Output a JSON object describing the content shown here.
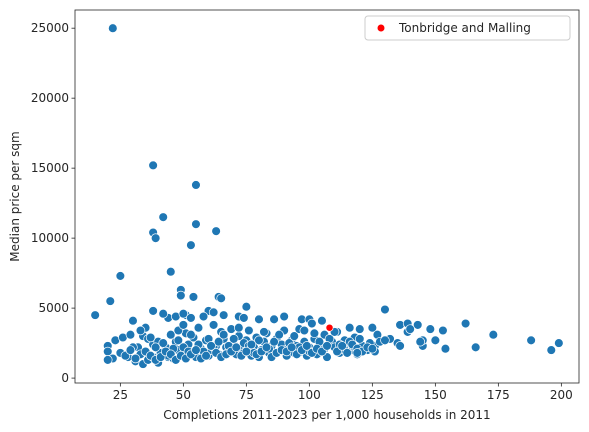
{
  "chart_data": {
    "type": "scatter",
    "title": "",
    "xlabel": "Completions 2011-2023 per 1,000 households in 2011",
    "ylabel": "Median price per sqm",
    "xlim": [
      7,
      207
    ],
    "ylim": [
      -350,
      26300
    ],
    "xticks": [
      25,
      50,
      75,
      100,
      125,
      150,
      175,
      200
    ],
    "yticks": [
      0,
      5000,
      10000,
      15000,
      20000,
      25000
    ],
    "grid": false,
    "legend_position": "top-right",
    "colors": {
      "points": "#1f77b4",
      "highlight": "#ff0000",
      "edge": "#ffffff",
      "axes": "#262626"
    },
    "series": [
      {
        "name": "",
        "points": [
          [
            22,
            25000
          ],
          [
            38,
            15200
          ],
          [
            55,
            13800
          ],
          [
            42,
            11500
          ],
          [
            55,
            11000
          ],
          [
            38,
            10400
          ],
          [
            63,
            10500
          ],
          [
            39,
            10000
          ],
          [
            53,
            9500
          ],
          [
            25,
            7300
          ],
          [
            45,
            7600
          ],
          [
            49,
            6300
          ],
          [
            54,
            5800
          ],
          [
            49,
            5900
          ],
          [
            64,
            5800
          ],
          [
            65,
            5700
          ],
          [
            21,
            5500
          ],
          [
            75,
            5100
          ],
          [
            60,
            4800
          ],
          [
            38,
            4800
          ],
          [
            15,
            4500
          ],
          [
            51,
            4500
          ],
          [
            58,
            4400
          ],
          [
            44,
            4300
          ],
          [
            47,
            4400
          ],
          [
            50,
            4600
          ],
          [
            53,
            4300
          ],
          [
            42,
            4600
          ],
          [
            62,
            4700
          ],
          [
            66,
            4500
          ],
          [
            72,
            4400
          ],
          [
            74,
            4300
          ],
          [
            80,
            4200
          ],
          [
            86,
            4200
          ],
          [
            90,
            4400
          ],
          [
            97,
            4200
          ],
          [
            100,
            4200
          ],
          [
            105,
            4100
          ],
          [
            130,
            4900
          ],
          [
            136,
            3800
          ],
          [
            139,
            3900
          ],
          [
            143,
            3800
          ],
          [
            148,
            3500
          ],
          [
            153,
            3400
          ],
          [
            162,
            3900
          ],
          [
            173,
            3100
          ],
          [
            188,
            2700
          ],
          [
            196,
            2000
          ],
          [
            199,
            2500
          ],
          [
            20,
            2300
          ],
          [
            20,
            1900
          ],
          [
            23,
            2700
          ],
          [
            26,
            2900
          ],
          [
            29,
            3100
          ],
          [
            32,
            2200
          ],
          [
            34,
            3000
          ],
          [
            35,
            3600
          ],
          [
            36,
            2800
          ],
          [
            38,
            2400
          ],
          [
            40,
            2600
          ],
          [
            30,
            2200
          ],
          [
            33,
            1700
          ],
          [
            28,
            1500
          ],
          [
            25,
            1800
          ],
          [
            22,
            1400
          ],
          [
            20,
            1300
          ],
          [
            31,
            1200
          ],
          [
            34,
            1000
          ],
          [
            36,
            1300
          ],
          [
            38,
            1500
          ],
          [
            40,
            1100
          ],
          [
            41,
            1800
          ],
          [
            43,
            2200
          ],
          [
            44,
            1500
          ],
          [
            46,
            1400
          ],
          [
            47,
            2600
          ],
          [
            48,
            2000
          ],
          [
            50,
            1700
          ],
          [
            51,
            3200
          ],
          [
            52,
            2400
          ],
          [
            53,
            1800
          ],
          [
            54,
            2900
          ],
          [
            55,
            1500
          ],
          [
            56,
            3600
          ],
          [
            57,
            2100
          ],
          [
            58,
            1800
          ],
          [
            59,
            2700
          ],
          [
            60,
            1600
          ],
          [
            61,
            2000
          ],
          [
            62,
            3800
          ],
          [
            63,
            2300
          ],
          [
            64,
            1700
          ],
          [
            65,
            3300
          ],
          [
            66,
            2800
          ],
          [
            67,
            2200
          ],
          [
            68,
            1900
          ],
          [
            69,
            3500
          ],
          [
            70,
            2400
          ],
          [
            71,
            1700
          ],
          [
            72,
            3000
          ],
          [
            73,
            2100
          ],
          [
            74,
            1800
          ],
          [
            75,
            2700
          ],
          [
            76,
            3400
          ],
          [
            77,
            1600
          ],
          [
            78,
            2200
          ],
          [
            79,
            2900
          ],
          [
            80,
            1500
          ],
          [
            81,
            2000
          ],
          [
            82,
            2600
          ],
          [
            83,
            3200
          ],
          [
            84,
            1800
          ],
          [
            85,
            2300
          ],
          [
            86,
            1700
          ],
          [
            87,
            2800
          ],
          [
            88,
            1900
          ],
          [
            89,
            2400
          ],
          [
            90,
            3400
          ],
          [
            91,
            1600
          ],
          [
            92,
            2100
          ],
          [
            93,
            2700
          ],
          [
            94,
            1800
          ],
          [
            95,
            2300
          ],
          [
            96,
            3500
          ],
          [
            97,
            1900
          ],
          [
            98,
            2600
          ],
          [
            99,
            1600
          ],
          [
            100,
            2200
          ],
          [
            101,
            3900
          ],
          [
            102,
            2800
          ],
          [
            103,
            1700
          ],
          [
            104,
            2400
          ],
          [
            105,
            2000
          ],
          [
            106,
            3100
          ],
          [
            107,
            1500
          ],
          [
            109,
            2600
          ],
          [
            110,
            2200
          ],
          [
            111,
            3300
          ],
          [
            112,
            1800
          ],
          [
            114,
            2700
          ],
          [
            115,
            2200
          ],
          [
            116,
            3600
          ],
          [
            117,
            2000
          ],
          [
            118,
            2900
          ],
          [
            119,
            1700
          ],
          [
            120,
            3500
          ],
          [
            121,
            2300
          ],
          [
            123,
            2000
          ],
          [
            125,
            3600
          ],
          [
            126,
            2300
          ],
          [
            127,
            3100
          ],
          [
            128,
            2600
          ],
          [
            132,
            2800
          ],
          [
            135,
            2500
          ],
          [
            139,
            3300
          ],
          [
            145,
            2300
          ],
          [
            145,
            2700
          ],
          [
            154,
            2100
          ],
          [
            166,
            2200
          ],
          [
            30,
            4100
          ],
          [
            33,
            3400
          ],
          [
            37,
            2900
          ],
          [
            39,
            2200
          ],
          [
            42,
            2500
          ],
          [
            45,
            3100
          ],
          [
            48,
            2700
          ],
          [
            50,
            2200
          ],
          [
            52,
            1900
          ],
          [
            44,
            1600
          ],
          [
            46,
            2100
          ],
          [
            48,
            3400
          ],
          [
            50,
            3800
          ],
          [
            53,
            3100
          ],
          [
            56,
            2400
          ],
          [
            58,
            1900
          ],
          [
            60,
            2800
          ],
          [
            62,
            2200
          ],
          [
            64,
            2600
          ],
          [
            66,
            3100
          ],
          [
            68,
            2300
          ],
          [
            70,
            2800
          ],
          [
            72,
            3600
          ],
          [
            74,
            2500
          ],
          [
            76,
            2300
          ],
          [
            78,
            1800
          ],
          [
            80,
            2700
          ],
          [
            82,
            3300
          ],
          [
            84,
            2100
          ],
          [
            86,
            2600
          ],
          [
            88,
            3100
          ],
          [
            90,
            2000
          ],
          [
            92,
            2500
          ],
          [
            94,
            3000
          ],
          [
            96,
            2200
          ],
          [
            98,
            3400
          ],
          [
            100,
            1900
          ],
          [
            102,
            3200
          ],
          [
            104,
            2600
          ],
          [
            106,
            2100
          ],
          [
            108,
            2800
          ],
          [
            110,
            3300
          ],
          [
            112,
            2400
          ],
          [
            114,
            2000
          ],
          [
            116,
            2600
          ],
          [
            118,
            2200
          ],
          [
            120,
            2800
          ],
          [
            124,
            2500
          ],
          [
            126,
            1900
          ],
          [
            130,
            2700
          ],
          [
            136,
            2300
          ],
          [
            140,
            3500
          ],
          [
            144,
            2600
          ],
          [
            150,
            2700
          ],
          [
            27,
            1600
          ],
          [
            29,
            2000
          ],
          [
            31,
            1400
          ],
          [
            35,
            1900
          ],
          [
            37,
            1600
          ],
          [
            39,
            1300
          ],
          [
            41,
            1500
          ],
          [
            43,
            1900
          ],
          [
            45,
            1700
          ],
          [
            47,
            1300
          ],
          [
            49,
            1600
          ],
          [
            51,
            1400
          ],
          [
            53,
            1700
          ],
          [
            55,
            2000
          ],
          [
            57,
            1400
          ],
          [
            59,
            1600
          ],
          [
            61,
            2300
          ],
          [
            63,
            1800
          ],
          [
            65,
            1500
          ],
          [
            67,
            1700
          ],
          [
            69,
            1900
          ],
          [
            71,
            2200
          ],
          [
            73,
            1600
          ],
          [
            75,
            1900
          ],
          [
            77,
            2400
          ],
          [
            79,
            1700
          ],
          [
            81,
            1900
          ],
          [
            83,
            2200
          ],
          [
            85,
            1500
          ],
          [
            87,
            1800
          ],
          [
            89,
            2000
          ],
          [
            91,
            1900
          ],
          [
            93,
            2200
          ],
          [
            95,
            1700
          ],
          [
            97,
            2000
          ],
          [
            99,
            2300
          ],
          [
            101,
            1800
          ],
          [
            103,
            2100
          ],
          [
            105,
            1900
          ],
          [
            107,
            2300
          ],
          [
            111,
            1900
          ],
          [
            113,
            2300
          ],
          [
            115,
            1800
          ],
          [
            117,
            2400
          ],
          [
            119,
            2100
          ],
          [
            121,
            1900
          ],
          [
            123,
            2200
          ],
          [
            125,
            2100
          ],
          [
            119,
            1800
          ]
        ]
      },
      {
        "name": "Tonbridge and Malling",
        "points": [
          [
            108,
            3600
          ]
        ]
      }
    ]
  }
}
